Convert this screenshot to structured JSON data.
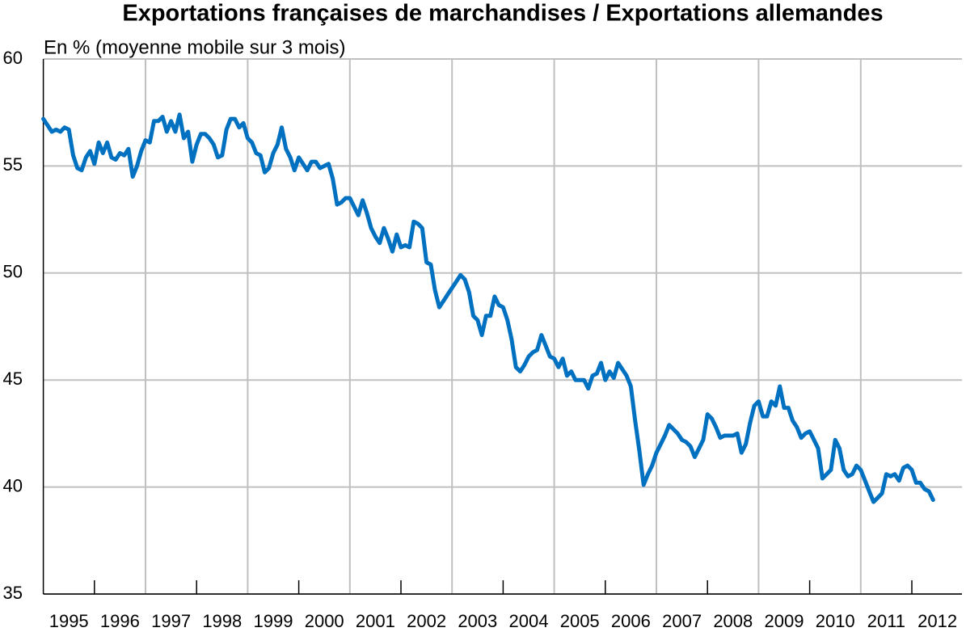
{
  "chart_data": {
    "type": "line",
    "title": "Exportations françaises de marchandises / Exportations allemandes",
    "subtitle": "En % (moyenne mobile sur 3 mois)",
    "categories": [
      null,
      null,
      null,
      null,
      null,
      "1995",
      null,
      null,
      null,
      null,
      null,
      null,
      null,
      null,
      null,
      null,
      null,
      "1996",
      null,
      null,
      null,
      null,
      null,
      null,
      null,
      null,
      null,
      null,
      null,
      "1997",
      null,
      null,
      null,
      null,
      null,
      null,
      null,
      null,
      null,
      null,
      null,
      "1998",
      null,
      null,
      null,
      null,
      null,
      null,
      null,
      null,
      null,
      null,
      null,
      "1999",
      null,
      null,
      null,
      null,
      null,
      null,
      null,
      null,
      null,
      null,
      null,
      "2000",
      null,
      null,
      null,
      null,
      null,
      null,
      null,
      null,
      null,
      null,
      null,
      "2001",
      null,
      null,
      null,
      null,
      null,
      null,
      null,
      null,
      null,
      null,
      null,
      "2002",
      null,
      null,
      null,
      null,
      null,
      null,
      null,
      null,
      null,
      null,
      null,
      "2003",
      null,
      null,
      null,
      null,
      null,
      null,
      null,
      null,
      null,
      null,
      null,
      "2004",
      null,
      null,
      null,
      null,
      null,
      null,
      null,
      null,
      null,
      null,
      null,
      "2005",
      null,
      null,
      null,
      null,
      null,
      null,
      null,
      null,
      null,
      null,
      null,
      "2006",
      null,
      null,
      null,
      null,
      null,
      null,
      null,
      null,
      null,
      null,
      null,
      "2007",
      null,
      null,
      null,
      null,
      null,
      null,
      null,
      null,
      null,
      null,
      null,
      "2008",
      null,
      null,
      null,
      null,
      null,
      null,
      null,
      null,
      null,
      null,
      null,
      "2009",
      null,
      null,
      null,
      null,
      null,
      null,
      null,
      null,
      null,
      null,
      null,
      "2010",
      null,
      null,
      null,
      null,
      null,
      null,
      null,
      null,
      null,
      null,
      null,
      "2011",
      null,
      null,
      null,
      null,
      null,
      null,
      null,
      null,
      null,
      null,
      null,
      "2012"
    ],
    "values": [
      57.2,
      56.9,
      56.6,
      56.7,
      56.6,
      56.8,
      56.7,
      55.5,
      54.9,
      54.8,
      55.4,
      55.7,
      55.1,
      56.1,
      55.6,
      56.1,
      55.4,
      55.3,
      55.6,
      55.5,
      55.8,
      54.5,
      55.0,
      55.7,
      56.2,
      56.1,
      57.1,
      57.1,
      57.3,
      56.6,
      57.1,
      56.6,
      57.4,
      56.3,
      56.6,
      55.2,
      56.0,
      56.5,
      56.5,
      56.3,
      56.0,
      55.4,
      55.5,
      56.7,
      57.2,
      57.2,
      56.8,
      57.0,
      56.3,
      56.1,
      55.6,
      55.5,
      54.7,
      54.9,
      55.6,
      56.0,
      56.8,
      55.8,
      55.4,
      54.8,
      55.4,
      55.1,
      54.8,
      55.2,
      55.2,
      54.9,
      55.0,
      55.1,
      54.4,
      53.2,
      53.3,
      53.5,
      53.5,
      53.1,
      52.7,
      53.4,
      52.8,
      52.1,
      51.7,
      51.4,
      52.1,
      51.6,
      51.0,
      51.8,
      51.2,
      51.3,
      51.2,
      52.4,
      52.3,
      52.1,
      50.5,
      50.4,
      49.2,
      48.4,
      48.7,
      49.0,
      49.3,
      49.6,
      49.9,
      49.7,
      49.1,
      48.0,
      47.8,
      47.1,
      48.0,
      48.0,
      48.9,
      48.5,
      48.4,
      47.8,
      46.9,
      45.6,
      45.4,
      45.7,
      46.1,
      46.3,
      46.4,
      47.1,
      46.6,
      46.1,
      46.0,
      45.6,
      46.0,
      45.2,
      45.4,
      45.0,
      45.0,
      45.0,
      44.6,
      45.2,
      45.3,
      45.8,
      45.0,
      45.4,
      45.1,
      45.8,
      45.5,
      45.2,
      44.7,
      43.1,
      41.7,
      40.1,
      40.6,
      41.0,
      41.6,
      42.0,
      42.4,
      42.9,
      42.7,
      42.5,
      42.2,
      42.1,
      41.9,
      41.4,
      41.8,
      42.2,
      43.4,
      43.2,
      42.8,
      42.3,
      42.4,
      42.4,
      42.4,
      42.5,
      41.6,
      42.0,
      43.0,
      43.8,
      44.0,
      43.3,
      43.3,
      44.0,
      43.8,
      44.7,
      43.7,
      43.7,
      43.1,
      42.8,
      42.3,
      42.5,
      42.6,
      42.2,
      41.8,
      40.4,
      40.6,
      40.8,
      42.2,
      41.8,
      40.8,
      40.5,
      40.6,
      41.0,
      40.8,
      40.3,
      39.8,
      39.3,
      39.5,
      39.7,
      40.6,
      40.5,
      40.6,
      40.3,
      40.9,
      41.0,
      40.8,
      40.2,
      40.2,
      39.9,
      39.8,
      39.4
    ],
    "color": "#0070c0",
    "ylim": [
      35,
      60
    ],
    "yticks": [
      35,
      40,
      45,
      50,
      55,
      60
    ],
    "grid": true
  }
}
